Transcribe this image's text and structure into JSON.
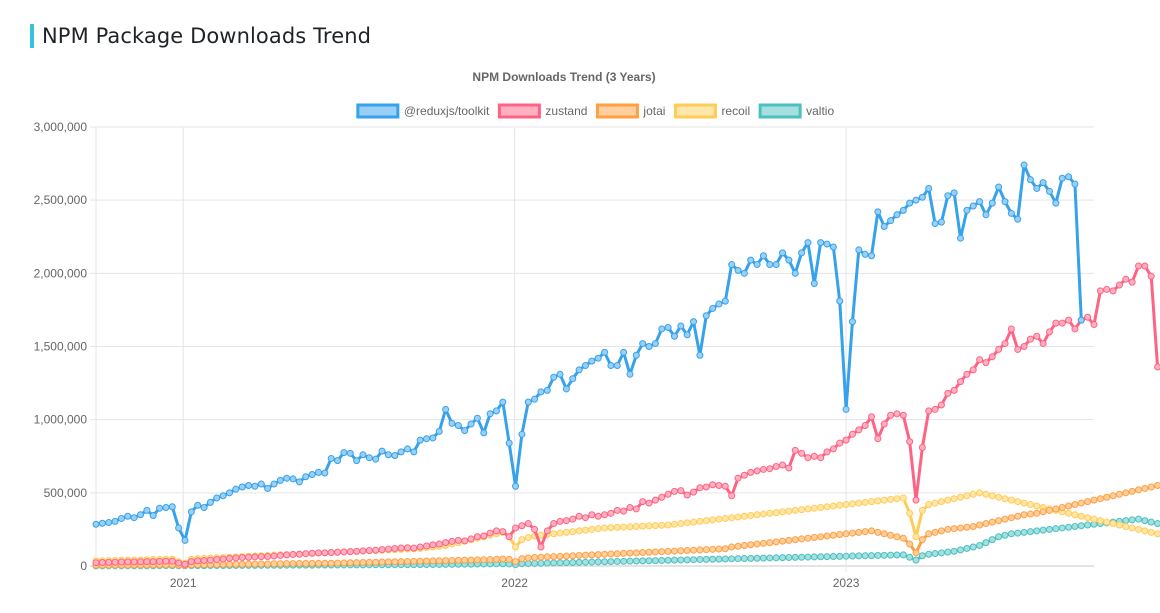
{
  "page": {
    "title": "NPM Package Downloads Trend"
  },
  "chart_data": {
    "type": "line",
    "title": "NPM Downloads Trend (3 Years)",
    "xlabel": "",
    "ylabel": "",
    "ylim": [
      0,
      3000000
    ],
    "yticks": [
      0,
      500000,
      1000000,
      1500000,
      2000000,
      2500000,
      3000000
    ],
    "ytick_labels": [
      "0",
      "500,000",
      "1,000,000",
      "1,500,000",
      "2,000,000",
      "2,500,000",
      "3,000,000"
    ],
    "x_start": "2020-09-27",
    "x_end": "2023-10-01",
    "x_interval_days": 7,
    "xticks": [
      {
        "label": "2021",
        "date": "2021-01-01"
      },
      {
        "label": "2022",
        "date": "2022-01-01"
      },
      {
        "label": "2023",
        "date": "2023-01-01"
      }
    ],
    "legend_position": "top",
    "grid": true,
    "series": [
      {
        "name": "@reduxjs/toolkit",
        "color": "#36a2eb",
        "fill": "#9ad0f5",
        "values": [
          285000,
          292000,
          297000,
          305000,
          325000,
          340000,
          330000,
          350000,
          380000,
          345000,
          395000,
          400000,
          405000,
          260000,
          175000,
          370000,
          415000,
          400000,
          435000,
          465000,
          480000,
          500000,
          525000,
          540000,
          550000,
          545000,
          560000,
          530000,
          560000,
          585000,
          600000,
          595000,
          575000,
          610000,
          625000,
          640000,
          635000,
          735000,
          720000,
          775000,
          770000,
          720000,
          760000,
          740000,
          730000,
          785000,
          760000,
          755000,
          780000,
          800000,
          780000,
          860000,
          870000,
          875000,
          920000,
          1070000,
          975000,
          960000,
          925000,
          970000,
          1010000,
          910000,
          1040000,
          1060000,
          1120000,
          840000,
          545000,
          900000,
          1120000,
          1140000,
          1190000,
          1200000,
          1290000,
          1310000,
          1210000,
          1280000,
          1340000,
          1370000,
          1400000,
          1420000,
          1460000,
          1370000,
          1370000,
          1460000,
          1310000,
          1440000,
          1520000,
          1500000,
          1520000,
          1620000,
          1630000,
          1570000,
          1640000,
          1580000,
          1670000,
          1440000,
          1710000,
          1760000,
          1790000,
          1810000,
          2060000,
          2020000,
          2000000,
          2090000,
          2060000,
          2120000,
          2060000,
          2060000,
          2140000,
          2090000,
          2000000,
          2140000,
          2210000,
          1930000,
          2210000,
          2200000,
          2180000,
          1810000,
          1070000,
          1670000,
          2160000,
          2130000,
          2120000,
          2420000,
          2320000,
          2360000,
          2400000,
          2430000,
          2480000,
          2500000,
          2520000,
          2580000,
          2340000,
          2350000,
          2530000,
          2550000,
          2240000,
          2430000,
          2460000,
          2490000,
          2400000,
          2480000,
          2590000,
          2490000,
          2410000,
          2370000,
          2740000,
          2640000,
          2580000,
          2620000,
          2560000,
          2480000,
          2650000,
          2660000,
          2610000,
          1680000
        ]
      },
      {
        "name": "zustand",
        "color": "#ff6384",
        "fill": "#ffb1c1",
        "values": [
          22000,
          24000,
          25000,
          26000,
          27000,
          28000,
          28000,
          29000,
          30000,
          30000,
          32000,
          33000,
          33000,
          20000,
          12000,
          30000,
          36000,
          38000,
          40000,
          44000,
          48000,
          52000,
          55000,
          58000,
          60000,
          62000,
          64000,
          65000,
          68000,
          72000,
          76000,
          79000,
          80000,
          84000,
          87000,
          90000,
          90000,
          92000,
          94000,
          96000,
          98000,
          100000,
          103000,
          106000,
          108000,
          112000,
          115000,
          120000,
          123000,
          125000,
          122000,
          130000,
          137000,
          145000,
          150000,
          160000,
          168000,
          175000,
          172000,
          185000,
          200000,
          205000,
          225000,
          240000,
          235000,
          200000,
          260000,
          275000,
          290000,
          250000,
          130000,
          240000,
          290000,
          305000,
          310000,
          320000,
          340000,
          330000,
          350000,
          340000,
          350000,
          360000,
          380000,
          375000,
          400000,
          390000,
          440000,
          430000,
          450000,
          470000,
          490000,
          510000,
          515000,
          485000,
          505000,
          535000,
          540000,
          555000,
          550000,
          545000,
          480000,
          600000,
          620000,
          640000,
          650000,
          660000,
          665000,
          680000,
          690000,
          670000,
          790000,
          770000,
          740000,
          750000,
          740000,
          780000,
          800000,
          840000,
          860000,
          900000,
          930000,
          960000,
          1020000,
          870000,
          970000,
          1030000,
          1040000,
          1030000,
          850000,
          450000,
          810000,
          1060000,
          1070000,
          1100000,
          1180000,
          1200000,
          1260000,
          1310000,
          1340000,
          1410000,
          1390000,
          1430000,
          1480000,
          1520000,
          1620000,
          1480000,
          1500000,
          1550000,
          1570000,
          1520000,
          1600000,
          1660000,
          1660000,
          1680000,
          1620000,
          1680000,
          1700000,
          1650000,
          1880000,
          1890000,
          1880000,
          1920000,
          1960000,
          1940000,
          2050000,
          2050000,
          1980000,
          1360000
        ]
      },
      {
        "name": "jotai",
        "color": "#ff9f40",
        "fill": "#ffcf9f",
        "values": [
          5000,
          5000,
          5500,
          5500,
          6000,
          6000,
          6500,
          6500,
          7000,
          7000,
          7500,
          7500,
          8000,
          6000,
          4000,
          8000,
          9000,
          9000,
          10000,
          10000,
          11000,
          11000,
          12000,
          12000,
          13000,
          13000,
          14000,
          14000,
          15000,
          15000,
          16000,
          16000,
          17000,
          17000,
          18000,
          18000,
          19000,
          19000,
          20000,
          21000,
          22000,
          23000,
          24000,
          25000,
          26000,
          27000,
          28000,
          29000,
          30000,
          31000,
          32000,
          33000,
          34000,
          35000,
          36000,
          37000,
          38000,
          39000,
          40000,
          41000,
          42000,
          43000,
          44000,
          46000,
          48000,
          45000,
          30000,
          50000,
          55000,
          58000,
          60000,
          62000,
          64000,
          66000,
          68000,
          70000,
          72000,
          74000,
          76000,
          78000,
          80000,
          82000,
          84000,
          86000,
          88000,
          90000,
          92000,
          94000,
          96000,
          98000,
          100000,
          102000,
          104000,
          106000,
          108000,
          110000,
          112000,
          114000,
          116000,
          118000,
          130000,
          135000,
          140000,
          145000,
          150000,
          155000,
          160000,
          165000,
          170000,
          175000,
          180000,
          185000,
          190000,
          195000,
          200000,
          205000,
          210000,
          215000,
          220000,
          225000,
          230000,
          235000,
          240000,
          230000,
          220000,
          210000,
          200000,
          190000,
          150000,
          90000,
          180000,
          220000,
          230000,
          240000,
          250000,
          255000,
          260000,
          265000,
          270000,
          280000,
          290000,
          300000,
          310000,
          320000,
          330000,
          340000,
          350000,
          355000,
          360000,
          370000,
          380000,
          390000,
          400000,
          410000,
          420000,
          430000,
          440000,
          450000,
          460000,
          470000,
          480000,
          490000,
          500000,
          510000,
          520000,
          530000,
          540000,
          550000
        ]
      },
      {
        "name": "recoil",
        "color": "#ffcd56",
        "fill": "#ffe6aa",
        "values": [
          35000,
          36000,
          37000,
          38000,
          39000,
          40000,
          41000,
          42000,
          43000,
          44000,
          45000,
          46000,
          47000,
          30000,
          20000,
          45000,
          50000,
          52000,
          54000,
          56000,
          58000,
          60000,
          62000,
          64000,
          66000,
          68000,
          70000,
          72000,
          74000,
          76000,
          78000,
          80000,
          82000,
          84000,
          86000,
          88000,
          90000,
          92000,
          94000,
          96000,
          98000,
          100000,
          102000,
          104000,
          106000,
          108000,
          110000,
          112000,
          114000,
          116000,
          118000,
          120000,
          125000,
          130000,
          135000,
          140000,
          150000,
          160000,
          170000,
          180000,
          190000,
          200000,
          210000,
          220000,
          230000,
          200000,
          130000,
          180000,
          195000,
          205000,
          210000,
          215000,
          220000,
          225000,
          230000,
          235000,
          240000,
          245000,
          250000,
          255000,
          260000,
          262000,
          264000,
          266000,
          268000,
          270000,
          272000,
          274000,
          276000,
          278000,
          280000,
          285000,
          290000,
          295000,
          300000,
          305000,
          310000,
          315000,
          320000,
          325000,
          330000,
          335000,
          340000,
          345000,
          350000,
          355000,
          360000,
          365000,
          370000,
          375000,
          380000,
          385000,
          390000,
          395000,
          400000,
          405000,
          410000,
          415000,
          420000,
          425000,
          430000,
          435000,
          440000,
          445000,
          450000,
          455000,
          460000,
          465000,
          360000,
          200000,
          380000,
          420000,
          430000,
          440000,
          450000,
          460000,
          470000,
          480000,
          490000,
          500000,
          490000,
          480000,
          470000,
          460000,
          450000,
          440000,
          430000,
          420000,
          410000,
          400000,
          390000,
          380000,
          370000,
          360000,
          350000,
          340000,
          330000,
          320000,
          310000,
          300000,
          290000,
          280000,
          270000,
          260000,
          250000,
          240000,
          230000,
          220000,
          210000,
          200000
        ]
      },
      {
        "name": "valtio",
        "color": "#4bc0c0",
        "fill": "#a5dfdf",
        "values": [
          1000,
          1000,
          1200,
          1200,
          1400,
          1400,
          1600,
          1600,
          1800,
          1800,
          2000,
          2000,
          2200,
          1800,
          1500,
          2400,
          2600,
          2800,
          3000,
          3200,
          3400,
          3600,
          3800,
          4000,
          4200,
          4400,
          4600,
          4800,
          5000,
          5200,
          5400,
          5600,
          5800,
          6000,
          6200,
          6400,
          6600,
          6800,
          7000,
          7200,
          7400,
          7600,
          7800,
          8000,
          8200,
          8400,
          8600,
          8800,
          9000,
          9200,
          9400,
          9600,
          9800,
          10000,
          10500,
          11000,
          11500,
          12000,
          12500,
          13000,
          13500,
          14000,
          14500,
          15000,
          15500,
          14000,
          10000,
          16000,
          17000,
          18000,
          19000,
          20000,
          21000,
          22000,
          23000,
          24000,
          25000,
          26000,
          27000,
          28000,
          29000,
          30000,
          31000,
          32000,
          33000,
          34000,
          35000,
          36000,
          37000,
          38000,
          39000,
          40000,
          41000,
          42000,
          43000,
          44000,
          45000,
          46000,
          47000,
          48000,
          49000,
          50000,
          51000,
          52000,
          53000,
          54000,
          55000,
          56000,
          57000,
          58000,
          59000,
          60000,
          61000,
          62000,
          63000,
          64000,
          65000,
          66000,
          67000,
          68000,
          69000,
          70000,
          71000,
          72000,
          73000,
          74000,
          75000,
          76000,
          60000,
          40000,
          70000,
          80000,
          85000,
          90000,
          95000,
          100000,
          110000,
          120000,
          130000,
          140000,
          160000,
          180000,
          200000,
          210000,
          220000,
          225000,
          230000,
          235000,
          240000,
          245000,
          250000,
          255000,
          260000,
          265000,
          270000,
          275000,
          280000,
          285000,
          290000,
          295000,
          300000,
          305000,
          310000,
          315000,
          320000,
          310000,
          300000,
          290000,
          280000,
          210000
        ]
      }
    ]
  }
}
